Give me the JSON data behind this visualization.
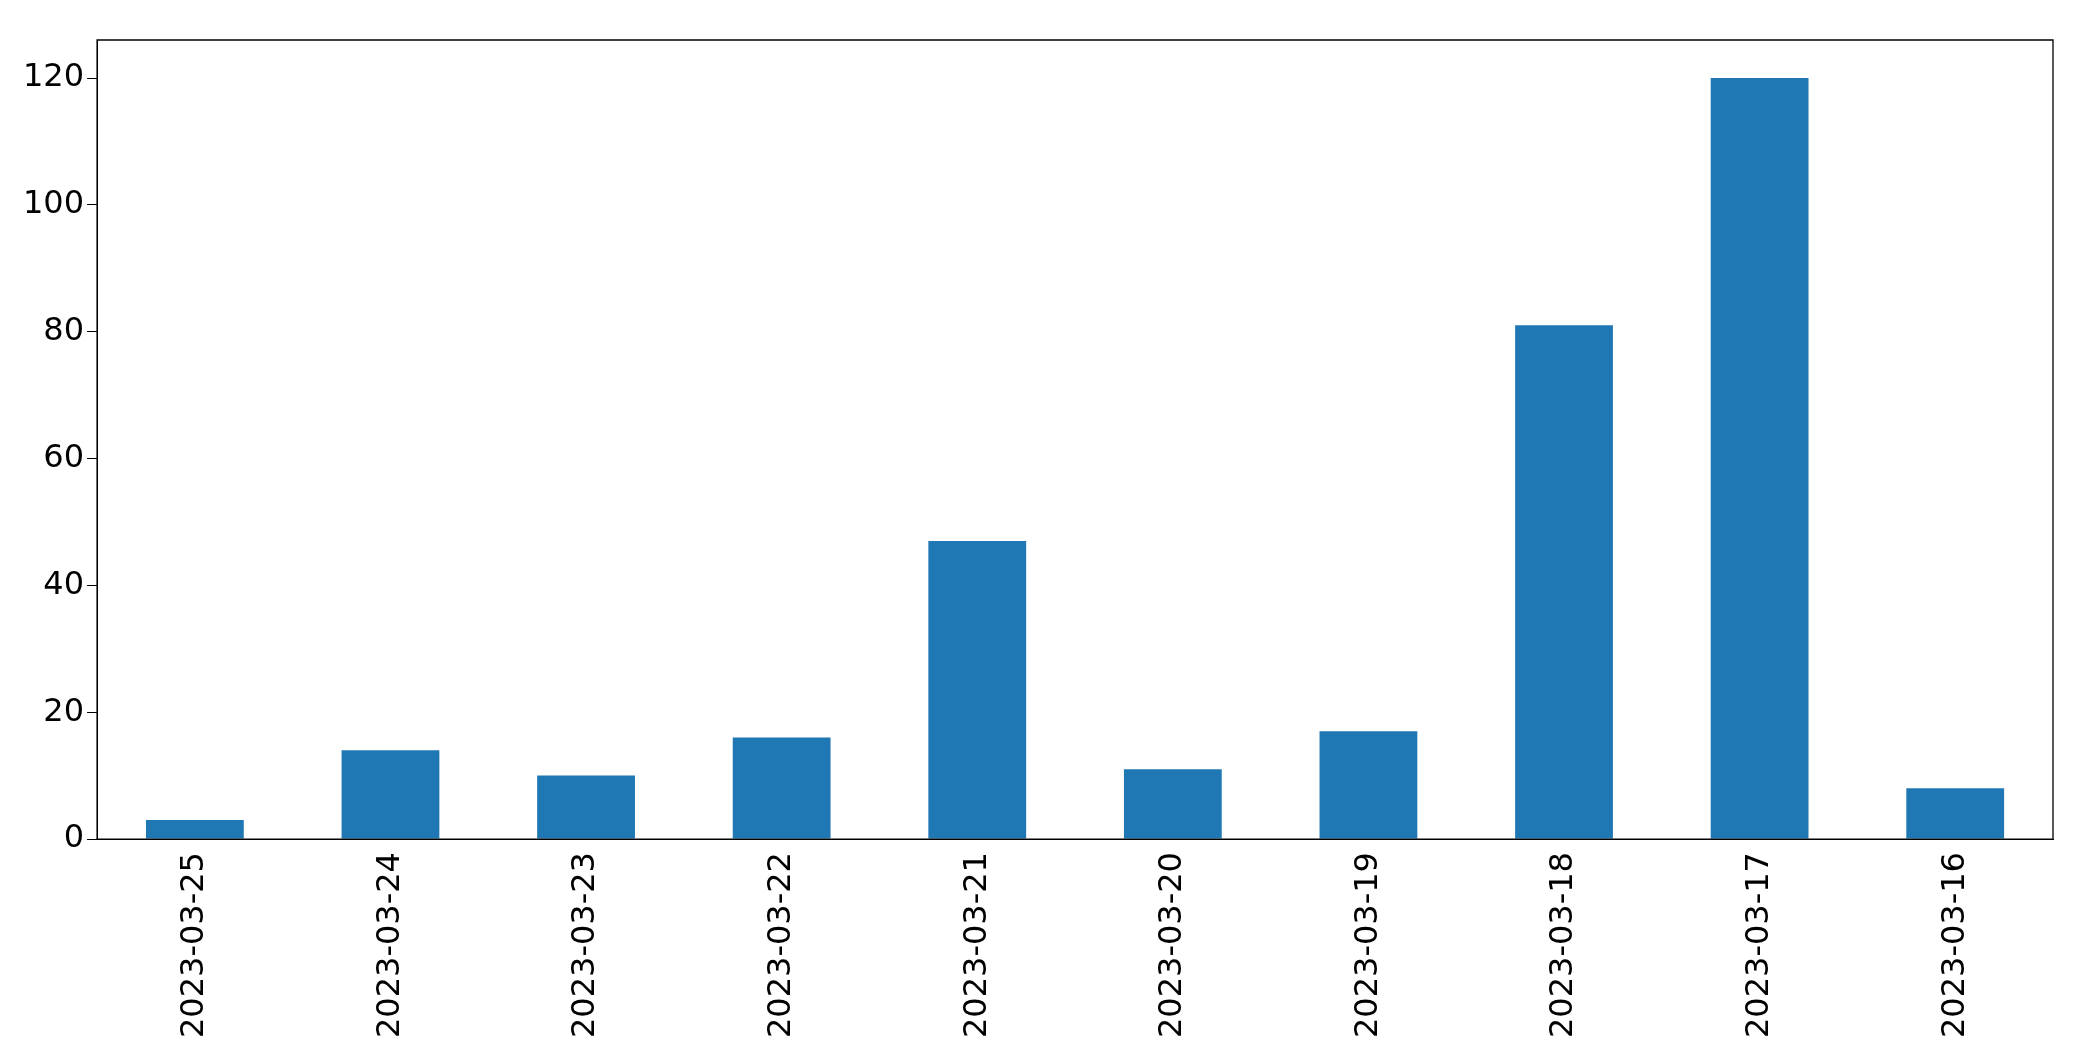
{
  "chart_data": {
    "type": "bar",
    "categories": [
      "2023-03-25",
      "2023-03-24",
      "2023-03-23",
      "2023-03-22",
      "2023-03-21",
      "2023-03-20",
      "2023-03-19",
      "2023-03-18",
      "2023-03-17",
      "2023-03-16"
    ],
    "values": [
      3,
      14,
      10,
      16,
      47,
      11,
      17,
      81,
      120,
      8
    ],
    "color": "#1f77b4",
    "ylim": [
      0,
      126
    ],
    "yticks": [
      0,
      20,
      40,
      60,
      80,
      100,
      120
    ],
    "grid": false,
    "legend": false
  }
}
